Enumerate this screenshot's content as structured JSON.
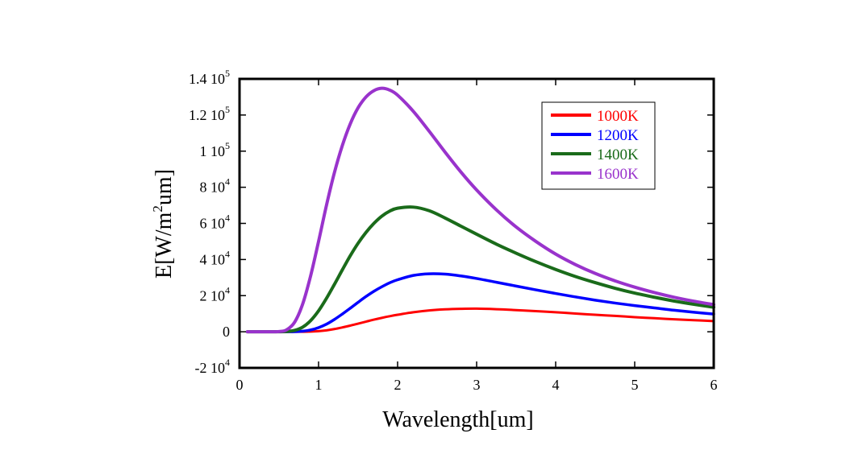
{
  "chart_data": {
    "type": "line",
    "title": "",
    "xlabel": "Wavelength[um]",
    "ylabel": {
      "prefix": "E[W/m",
      "sup": "2",
      "suffix": "um]"
    },
    "xlim": [
      0,
      6
    ],
    "ylim": [
      -20000,
      140000
    ],
    "x_ticks": [
      {
        "value": 0,
        "label": "0"
      },
      {
        "value": 1,
        "label": "1"
      },
      {
        "value": 2,
        "label": "2"
      },
      {
        "value": 3,
        "label": "3"
      },
      {
        "value": 4,
        "label": "4"
      },
      {
        "value": 5,
        "label": "5"
      },
      {
        "value": 6,
        "label": "6"
      }
    ],
    "y_ticks": [
      {
        "value": -20000,
        "mantissa": "-2 10",
        "exp": "4"
      },
      {
        "value": 0,
        "mantissa": "0",
        "exp": ""
      },
      {
        "value": 20000,
        "mantissa": "2 10",
        "exp": "4"
      },
      {
        "value": 40000,
        "mantissa": "4 10",
        "exp": "4"
      },
      {
        "value": 60000,
        "mantissa": "6 10",
        "exp": "4"
      },
      {
        "value": 80000,
        "mantissa": "8 10",
        "exp": "4"
      },
      {
        "value": 100000,
        "mantissa": "1 10",
        "exp": "5"
      },
      {
        "value": 120000,
        "mantissa": "1.2 10",
        "exp": "5"
      },
      {
        "value": 140000,
        "mantissa": "1.4 10",
        "exp": "5"
      }
    ],
    "grid": false,
    "legend_position": "top-right",
    "x": [
      0.1,
      0.3,
      0.5,
      0.6,
      0.7,
      0.8,
      0.9,
      1.0,
      1.1,
      1.2,
      1.3,
      1.4,
      1.5,
      1.6,
      1.7,
      1.8,
      1.9,
      2.0,
      2.2,
      2.4,
      2.6,
      2.8,
      3.0,
      3.25,
      3.5,
      3.75,
      4.0,
      4.25,
      4.5,
      4.75,
      5.0,
      5.25,
      5.5,
      5.75,
      6.0
    ],
    "series": [
      {
        "name": "1000K",
        "color": "#ff0000",
        "values": [
          0,
          0,
          0,
          0,
          0,
          20,
          110,
          350,
          800,
          1500,
          2400,
          3400,
          4500,
          5600,
          6700,
          7700,
          8600,
          9400,
          10800,
          11800,
          12400,
          12700,
          12800,
          12500,
          12000,
          11400,
          10800,
          10100,
          9400,
          8800,
          8100,
          7500,
          6900,
          6400,
          5900
        ]
      },
      {
        "name": "1200K",
        "color": "#0000ff",
        "values": [
          0,
          0,
          0,
          10,
          80,
          350,
          1000,
          2300,
          4200,
          6800,
          9800,
          13000,
          16300,
          19500,
          22400,
          24900,
          27100,
          28800,
          31200,
          32100,
          31900,
          30900,
          29500,
          27400,
          25300,
          23200,
          21200,
          19300,
          17500,
          15900,
          14500,
          13200,
          11900,
          10800,
          9800
        ]
      },
      {
        "name": "1400K",
        "color": "#1a6b1a",
        "values": [
          0,
          0,
          10,
          150,
          800,
          2600,
          6200,
          11600,
          18500,
          26200,
          34200,
          42000,
          49000,
          55000,
          60000,
          64000,
          66800,
          68400,
          69000,
          67000,
          63000,
          58500,
          54000,
          48500,
          43500,
          38800,
          34500,
          30600,
          27200,
          24100,
          21400,
          19100,
          17000,
          15200,
          13600
        ]
      },
      {
        "name": "1600K",
        "color": "#9933cc",
        "values": [
          0,
          0,
          100,
          1200,
          5500,
          15500,
          31000,
          50000,
          70000,
          88000,
          103000,
          115000,
          124000,
          130000,
          133500,
          134800,
          133800,
          131000,
          122000,
          111000,
          99500,
          88500,
          78500,
          67500,
          58000,
          50000,
          43000,
          37200,
          32300,
          28200,
          24700,
          21700,
          19100,
          16900,
          15000
        ]
      }
    ]
  }
}
